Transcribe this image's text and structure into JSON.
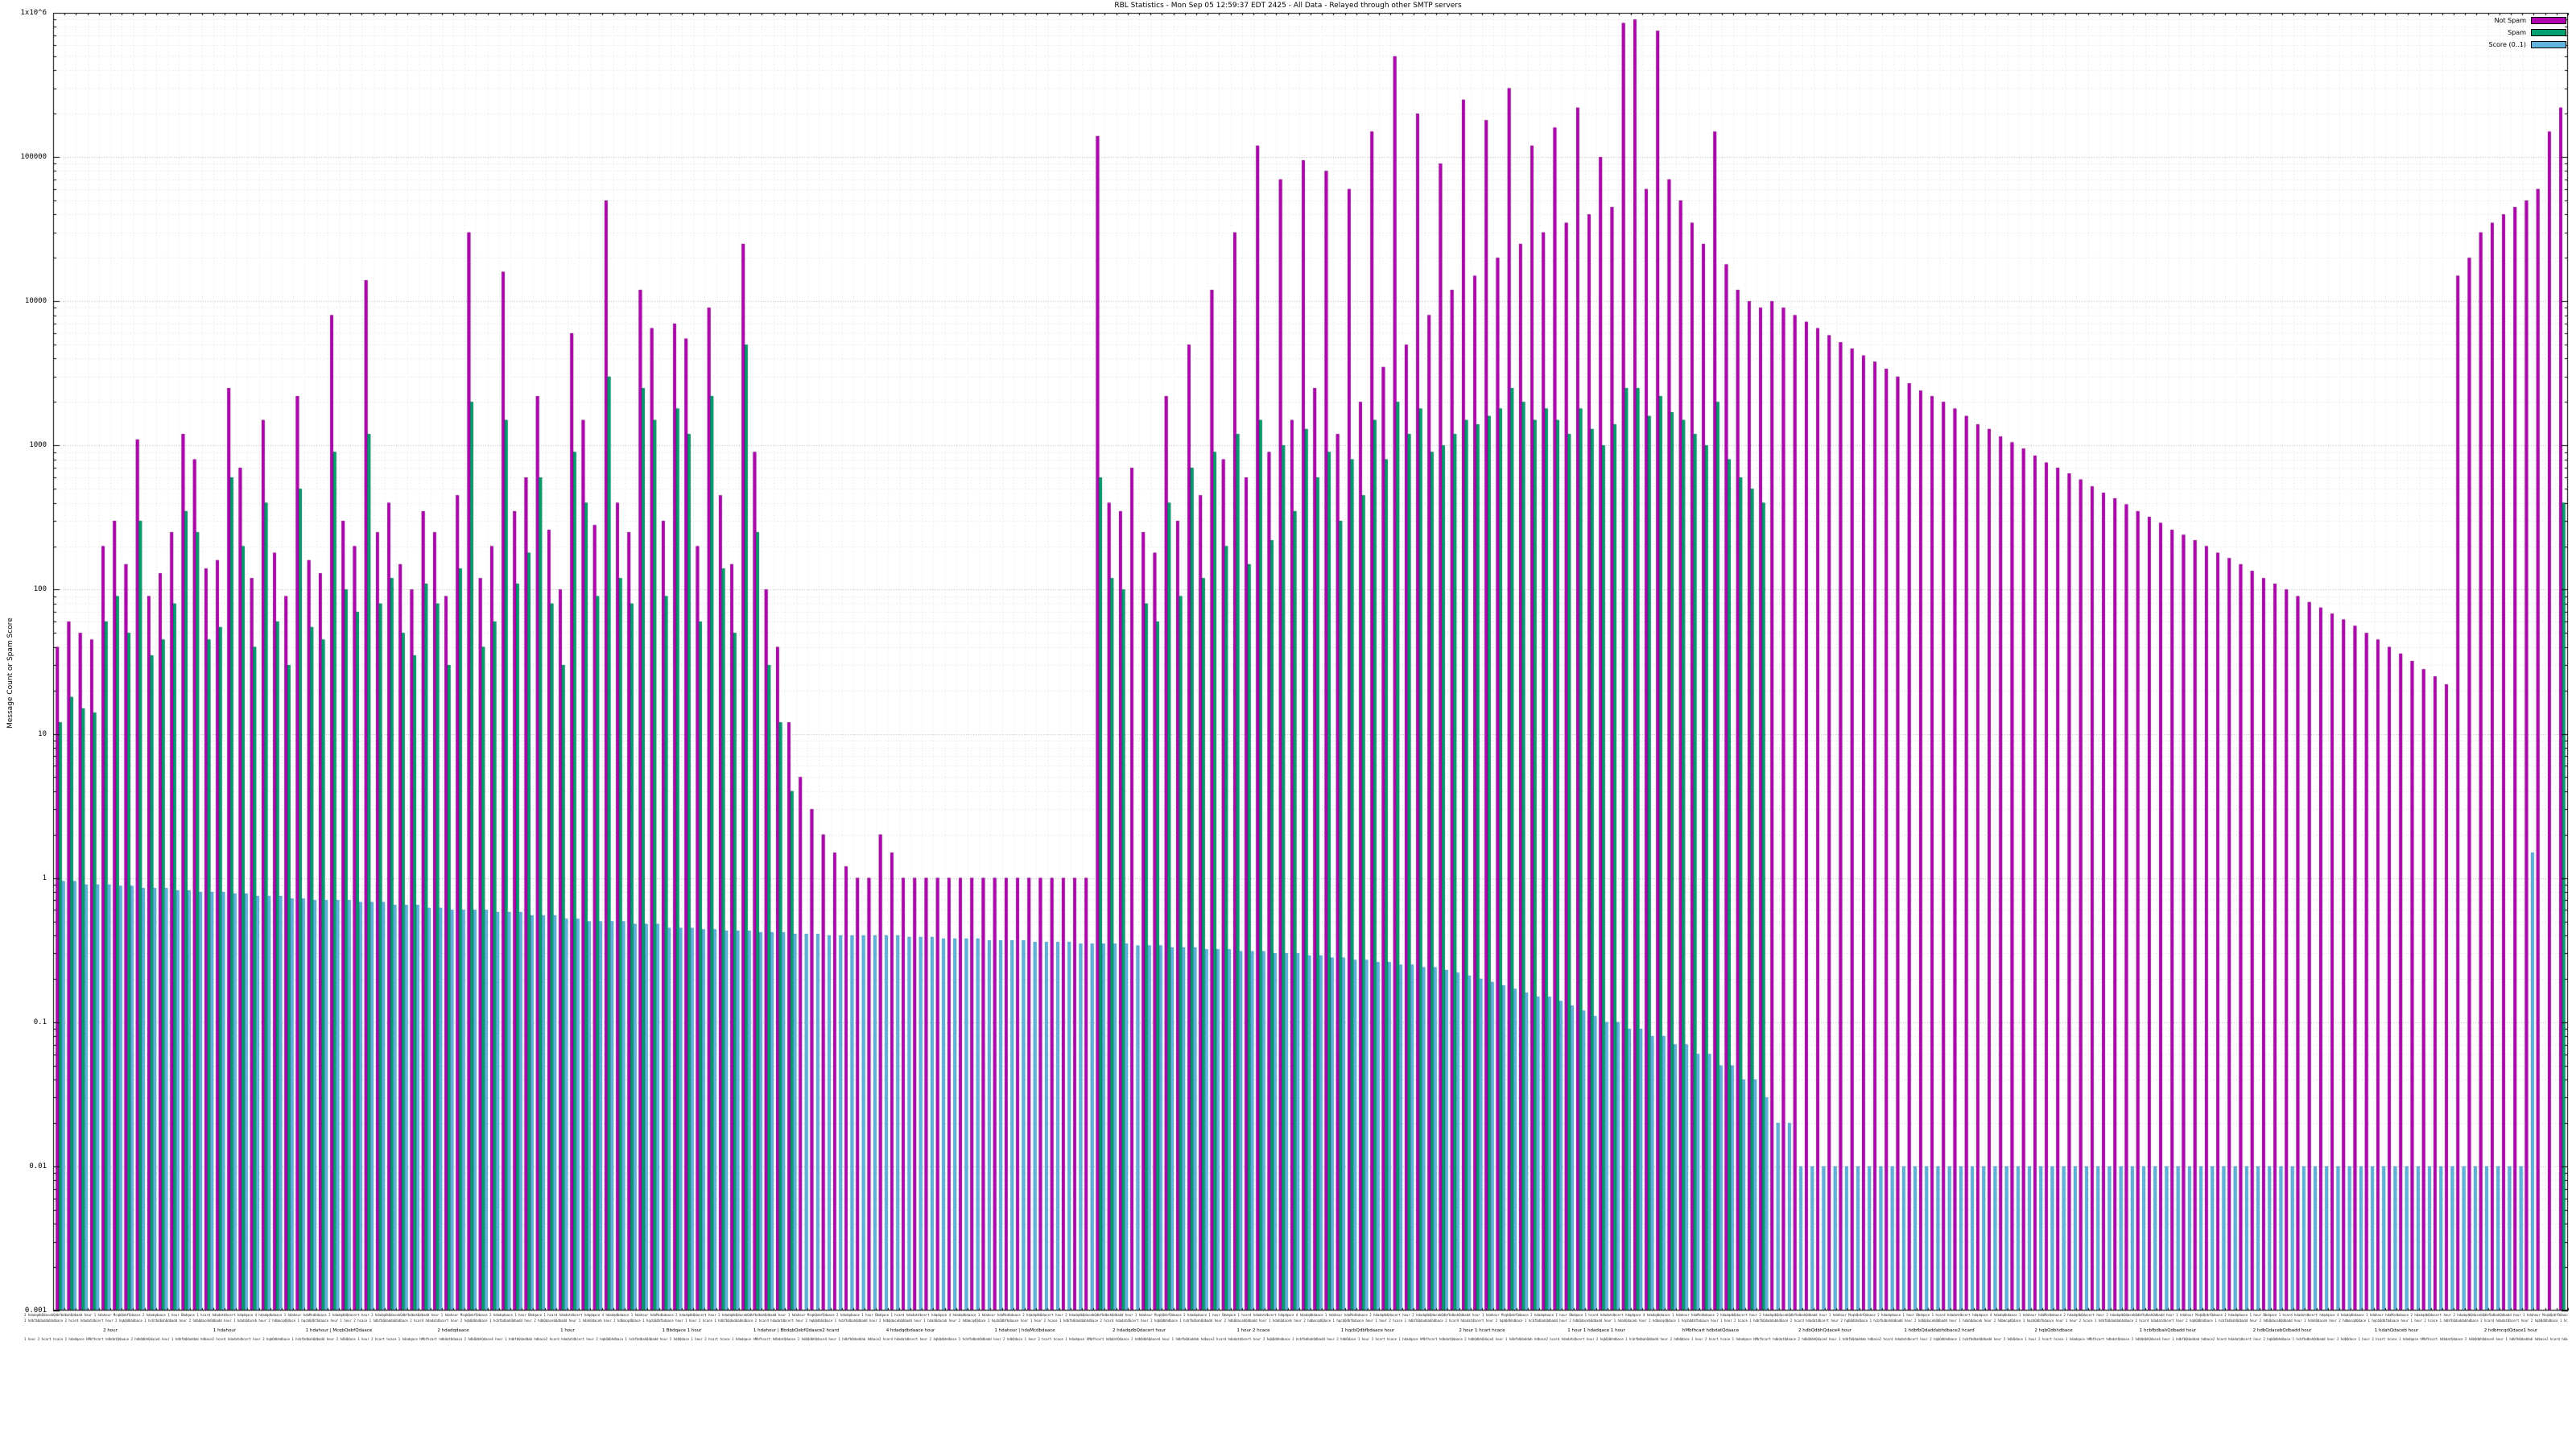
{
  "chart_data": {
    "type": "bar",
    "y_scale": "log",
    "ylim": [
      0.001,
      1000000
    ],
    "title": "RBL Statistics - Mon Sep 05 12:59:37 EDT 2425 - All Data - Relayed through other SMTP servers",
    "ylabel": "Message Count or Spam Score",
    "xlabel": "",
    "grid": true,
    "legend_position": "top-right",
    "background": "#ffffff",
    "y_ticks": [
      "0.001",
      "0.01",
      "0.1",
      "1",
      "10",
      "100",
      "1000",
      "10000",
      "100000",
      "1x10^6"
    ],
    "x_tick_labels_legible": false,
    "series": [
      {
        "name": "Not Spam",
        "color": "#b100b1",
        "edge": "#6f006f",
        "values": [
          40,
          60,
          50,
          45,
          200,
          300,
          150,
          1100,
          90,
          130,
          250,
          1200,
          800,
          140,
          160,
          2500,
          700,
          120,
          1500,
          180,
          90,
          2200,
          160,
          130,
          8000,
          300,
          200,
          14000,
          250,
          400,
          150,
          100,
          350,
          250,
          90,
          450,
          30000,
          120,
          200,
          16000,
          350,
          600,
          2200,
          260,
          100,
          6000,
          1500,
          280,
          50000,
          400,
          250,
          12000,
          6500,
          300,
          7000,
          5500,
          200,
          9000,
          450,
          150,
          25000,
          900,
          100,
          40,
          12,
          5,
          3,
          2,
          1.5,
          1.2,
          1,
          1,
          2,
          1.5,
          1,
          1,
          1,
          1,
          1,
          1,
          1,
          1,
          1,
          1,
          1,
          1,
          1,
          1,
          1,
          1,
          1,
          140000,
          400,
          350,
          700,
          250,
          180,
          2200,
          300,
          5000,
          450,
          12000,
          800,
          30000,
          600,
          120000,
          900,
          70000,
          1500,
          95000,
          2500,
          80000,
          1200,
          60000,
          2000,
          150000,
          3500,
          500000,
          5000,
          200000,
          8000,
          90000,
          12000,
          250000,
          15000,
          180000,
          20000,
          300000,
          25000,
          120000,
          30000,
          160000,
          35000,
          220000,
          40000,
          100000,
          45000,
          850000,
          900000,
          60000,
          750000,
          70000,
          50000,
          35000,
          25000,
          150000,
          18000,
          12000,
          10000,
          9000,
          10000,
          9000,
          8000,
          7200,
          6500,
          5800,
          5200,
          4700,
          4200,
          3800,
          3400,
          3000,
          2700,
          2400,
          2200,
          2000,
          1800,
          1600,
          1400,
          1300,
          1150,
          1050,
          950,
          850,
          760,
          700,
          640,
          580,
          520,
          470,
          430,
          390,
          350,
          320,
          290,
          260,
          240,
          220,
          200,
          180,
          165,
          150,
          135,
          120,
          110,
          100,
          90,
          82,
          75,
          68,
          62,
          56,
          50,
          45,
          40,
          36,
          32,
          28,
          25,
          22,
          15000,
          20000,
          30000,
          35000,
          40000,
          45000,
          50000,
          60000,
          150000,
          220000
        ]
      },
      {
        "name": "Spam",
        "color": "#00a070",
        "edge": "#006648",
        "values": [
          12,
          18,
          15,
          14,
          60,
          90,
          50,
          300,
          35,
          45,
          80,
          350,
          250,
          45,
          55,
          600,
          200,
          40,
          400,
          60,
          30,
          500,
          55,
          45,
          900,
          100,
          70,
          1200,
          80,
          120,
          50,
          35,
          110,
          80,
          30,
          140,
          2000,
          40,
          60,
          1500,
          110,
          180,
          600,
          80,
          30,
          900,
          400,
          90,
          3000,
          120,
          80,
          2500,
          1500,
          90,
          1800,
          1200,
          60,
          2200,
          140,
          50,
          5000,
          250,
          30,
          12,
          4,
          0,
          0,
          0,
          0,
          0,
          0,
          0,
          0,
          0,
          0,
          0,
          0,
          0,
          0,
          0,
          0,
          0,
          0,
          0,
          0,
          0,
          0,
          0,
          0,
          0,
          0,
          600,
          120,
          100,
          0,
          80,
          60,
          400,
          90,
          700,
          120,
          900,
          200,
          1200,
          150,
          1500,
          220,
          1000,
          350,
          1300,
          600,
          900,
          300,
          800,
          450,
          1500,
          800,
          2000,
          1200,
          1800,
          900,
          1000,
          1200,
          1500,
          1400,
          1600,
          1800,
          2500,
          2000,
          1500,
          1800,
          1500,
          1200,
          1800,
          1300,
          1000,
          1400,
          2500,
          2500,
          1600,
          2200,
          1700,
          1500,
          1200,
          1000,
          2000,
          800,
          600,
          500,
          400,
          0,
          0,
          0,
          0,
          0,
          0,
          0,
          0,
          0,
          0,
          0,
          0,
          0,
          0,
          0,
          0,
          0,
          0,
          0,
          0,
          0,
          0,
          0,
          0,
          0,
          0,
          0,
          0,
          0,
          0,
          0,
          0,
          0,
          0,
          0,
          0,
          0,
          0,
          0,
          0,
          0,
          0,
          0,
          0,
          0,
          0,
          0,
          0,
          0,
          0,
          0,
          0,
          0,
          0,
          0,
          0,
          0,
          0,
          0,
          0,
          0,
          0,
          0,
          0,
          0,
          0,
          0,
          0,
          0,
          400
        ]
      },
      {
        "name": "Score (0..1)",
        "color": "#62b4dc",
        "edge": "#2f7fae",
        "values": [
          0.95,
          0.95,
          0.9,
          0.9,
          0.9,
          0.88,
          0.88,
          0.85,
          0.85,
          0.85,
          0.82,
          0.82,
          0.8,
          0.8,
          0.8,
          0.78,
          0.78,
          0.75,
          0.75,
          0.75,
          0.72,
          0.72,
          0.7,
          0.7,
          0.7,
          0.7,
          0.68,
          0.68,
          0.68,
          0.65,
          0.65,
          0.65,
          0.62,
          0.62,
          0.6,
          0.6,
          0.6,
          0.6,
          0.58,
          0.58,
          0.58,
          0.55,
          0.55,
          0.55,
          0.52,
          0.52,
          0.5,
          0.5,
          0.5,
          0.5,
          0.48,
          0.48,
          0.48,
          0.45,
          0.45,
          0.45,
          0.44,
          0.44,
          0.43,
          0.43,
          0.43,
          0.42,
          0.42,
          0.42,
          0.41,
          0.41,
          0.41,
          0.4,
          0.4,
          0.4,
          0.4,
          0.4,
          0.4,
          0.4,
          0.39,
          0.39,
          0.39,
          0.38,
          0.38,
          0.38,
          0.38,
          0.37,
          0.37,
          0.37,
          0.37,
          0.36,
          0.36,
          0.36,
          0.36,
          0.35,
          0.35,
          0.35,
          0.35,
          0.35,
          0.34,
          0.34,
          0.34,
          0.33,
          0.33,
          0.33,
          0.32,
          0.32,
          0.32,
          0.31,
          0.31,
          0.31,
          0.3,
          0.3,
          0.3,
          0.29,
          0.29,
          0.28,
          0.28,
          0.27,
          0.27,
          0.26,
          0.26,
          0.25,
          0.25,
          0.24,
          0.24,
          0.23,
          0.22,
          0.21,
          0.2,
          0.19,
          0.18,
          0.17,
          0.16,
          0.15,
          0.15,
          0.14,
          0.13,
          0.12,
          0.11,
          0.1,
          0.1,
          0.09,
          0.09,
          0.08,
          0.08,
          0.07,
          0.07,
          0.06,
          0.06,
          0.05,
          0.05,
          0.04,
          0.04,
          0.03,
          0.02,
          0.02,
          0.01,
          0.01,
          0.01,
          0.01,
          0.01,
          0.01,
          0.01,
          0.01,
          0.01,
          0.01,
          0.01,
          0.01,
          0.01,
          0.01,
          0.01,
          0.01,
          0.01,
          0.01,
          0.01,
          0.01,
          0.01,
          0.01,
          0.01,
          0.01,
          0.01,
          0.01,
          0.01,
          0.01,
          0.01,
          0.01,
          0.01,
          0.01,
          0.01,
          0.01,
          0.01,
          0.01,
          0.01,
          0.01,
          0.01,
          0.01,
          0.01,
          0.01,
          0.01,
          0.01,
          0.01,
          0.01,
          0.01,
          0.01,
          0.01,
          0.01,
          0.01,
          0.01,
          0.01,
          0.01,
          0.01,
          0.01,
          0.01,
          0.01,
          0.01,
          0.01,
          0.01,
          0.01,
          0.01,
          0.01,
          1.5
        ]
      }
    ],
    "group_labels": [
      "2 hour",
      "1 hdahour",
      "1 hdahour | McqbQebfQdaace",
      "2 hdadqdaace",
      "1 hour",
      "1 Bbdqace 1 hour",
      "1 hdahour | BbdqbQebfQdaace2 hcard",
      "4 hdadqdbdaace hour",
      "1 hdahour | hdaMcdbdaace",
      "2 hdadqdbQdacert hour",
      "1 hour 2 hcace",
      "1 hqcbQdbfbdaace hour",
      "2 hour 1 hcart hcace",
      "1 hour 1 hdadqace 1 hour",
      "hMbfhcart hdbdatQdaace",
      "2 hdbQdbhQdace4 hour",
      "1 hdbfbQdaddabhdbace2 hcard",
      "2 hqbQdbhdbace",
      "1 hcbfbdbahQdbadd hour",
      "2 hdbQdacebQdbadd hour",
      "1 hdahQdaceb hour",
      "2 hdbmcqdQdace1 hour"
    ],
    "x_axis": {
      "microtext_row1": "2 hdadqdbQdacebQdbfbdbahQdbadd hour 1 hdahour McqbQebfQdaace 2 hdadqdaace 1 hour Bbdqace 1 hcard hdadatdbcert hdqdqace 4 hdadqdbdaace 1 hdahour hdaMcdbdaace 2 hdadqdbQdacert hour ",
      "microtext_row2": "1 hdbfbQdaddabhdbace 2 hcard hdadatdbcert hour 2 hqbQdbhdbace 1 hcbfbdbahQdbadd hour 2 hdbQdacebQdbadd hour 1 hdahQdaceb hour 2 hdbmcqdQdace 1 hqcbQdbfbdaace hour 1 hour 2 hcace ",
      "microtext_row3": "1 hour 2 hcart hcace 1 hdadqace hMbfhcart hdbdatQdaace 2 hdbQdbhQdace4 hour 1 hdbfbQdaddab hdbace2 hcard hdadatdbcert hour 2 hqbQdbhdbace 1 hcbfbdbahQdbadd hour 2 hdbQdace "
    }
  }
}
